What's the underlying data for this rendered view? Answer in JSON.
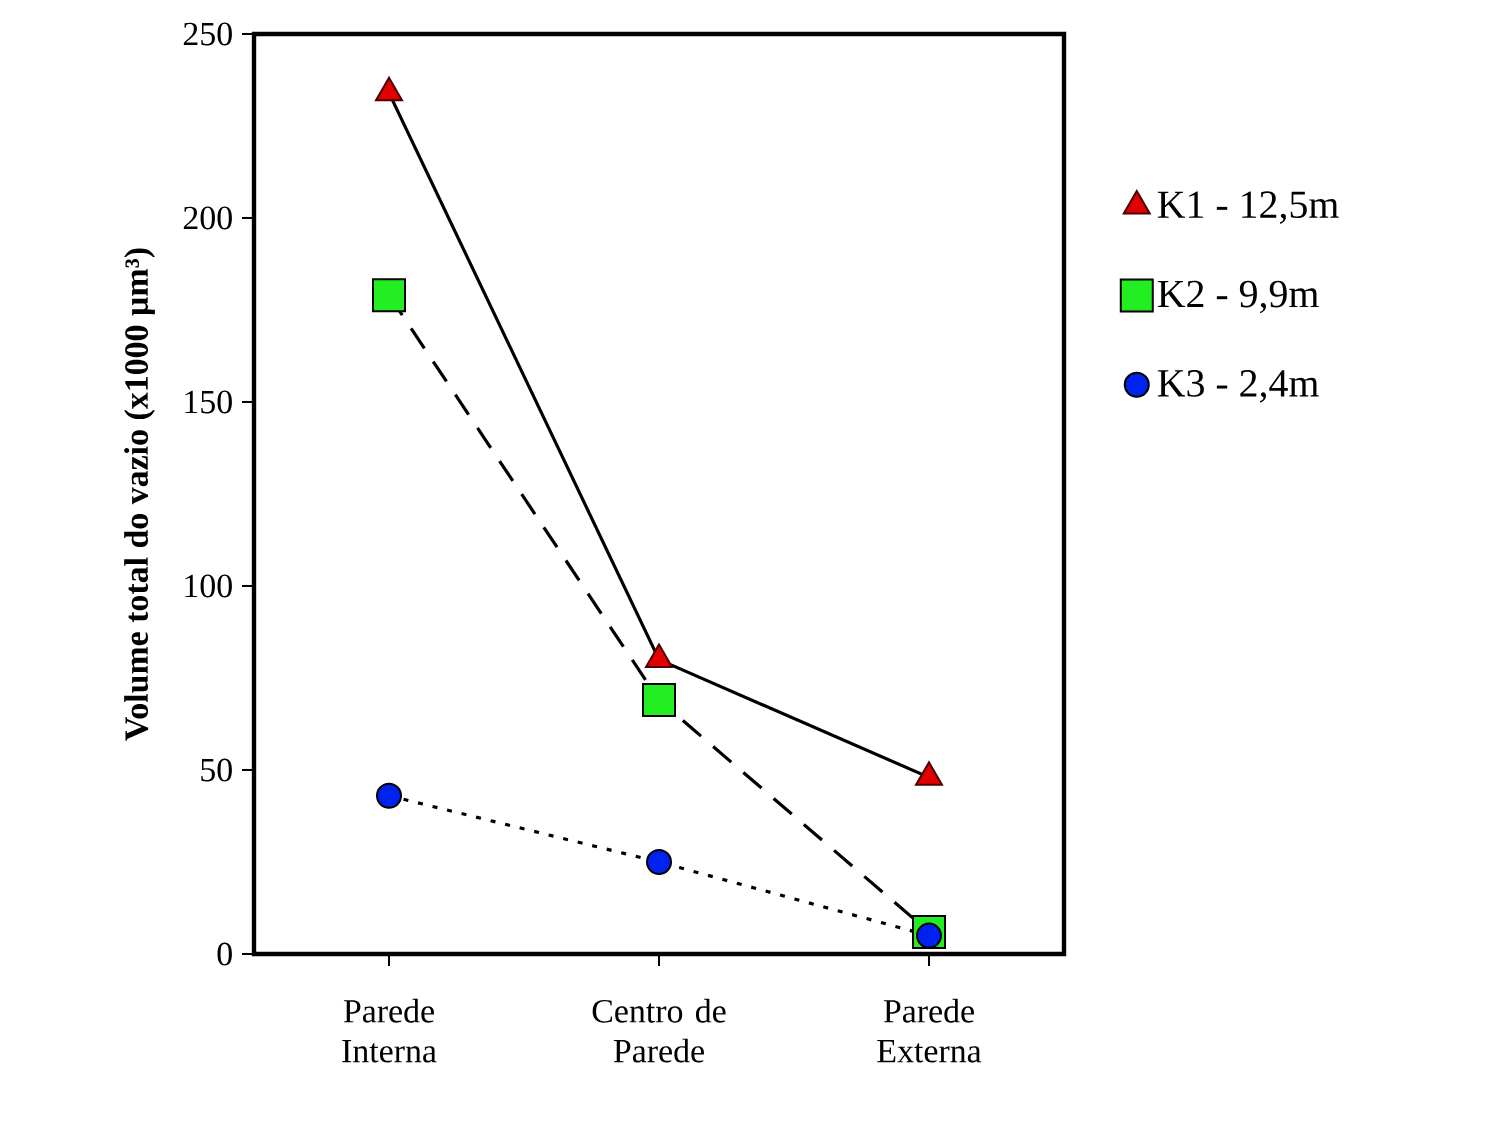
{
  "chart_data": {
    "type": "line",
    "ylabel": "Volume total do vazio (x1000 µm³)",
    "categories": [
      "Parede Interna",
      "Centro de Parede",
      "Parede Externa"
    ],
    "ylim": [
      0,
      250
    ],
    "yticks": [
      0,
      50,
      100,
      150,
      200,
      250
    ],
    "grid": false,
    "legend": "right",
    "series": [
      {
        "name": "K1 - 12,5m",
        "color": "#e00000",
        "marker": "triangle",
        "line_style": "solid",
        "values": [
          234,
          80,
          48
        ]
      },
      {
        "name": "K2 - 9,9m",
        "color": "#22ee22",
        "marker": "square",
        "line_style": "dashed",
        "values": [
          179,
          69,
          6
        ]
      },
      {
        "name": "K3 - 2,4m",
        "color": "#0022ee",
        "marker": "circle",
        "line_style": "dotted",
        "values": [
          43,
          25,
          5
        ]
      }
    ]
  }
}
